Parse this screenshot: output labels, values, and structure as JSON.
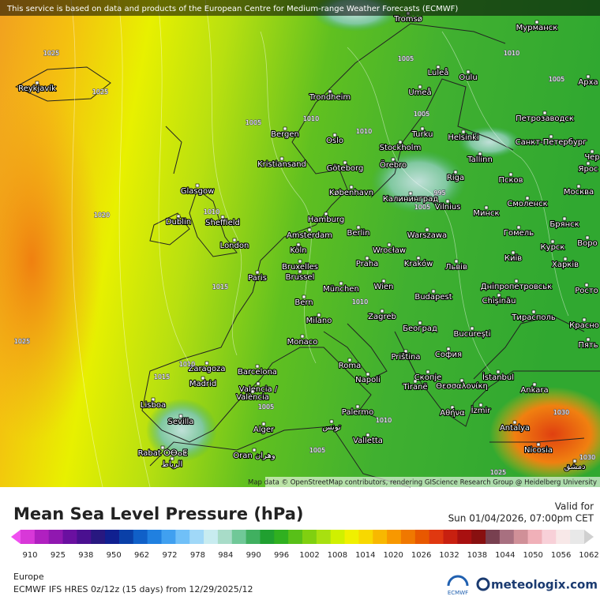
{
  "header": {
    "notice": "This service is based on data and products of the European Centre for Medium-range Weather Forecasts (ECMWF)"
  },
  "map": {
    "cities": [
      "Reykjavík",
      "Tromsø",
      "Мурманск",
      "Luleå",
      "Oulu",
      "Арха",
      "Trondheim",
      "Umeå",
      "Петрозаводск",
      "Bergen",
      "Turku",
      "Helsinki",
      "Санкт-Петербург",
      "Oslo",
      "Stockholm",
      "Tallinn",
      "Kristiansand",
      "Göteborg",
      "Örebro",
      "Чер",
      "Ярос",
      "Glasgow",
      "Riga",
      "Псков",
      "København",
      "Москва",
      "Калининград",
      "Vilnius",
      "Смоленск",
      "Dublin",
      "Sheffield",
      "Hamburg",
      "Минск",
      "Брянск",
      "Amsterdam",
      "Berlin",
      "Warszawa",
      "Гомель",
      "Воро",
      "London",
      "Köln",
      "Wrocław",
      "Київ",
      "Курск",
      "Bruxelles",
      "Brussel",
      "Praha",
      "Kraków",
      "Львів",
      "Харків",
      "Paris",
      "München",
      "Wien",
      "Дніпропетровськ",
      "Росто",
      "Chișinău",
      "Bern",
      "Budapest",
      "Milano",
      "Zagreb",
      "Тирасполь",
      "Красно",
      "Београд",
      "București",
      "Monaco",
      "Пять",
      "Priština",
      "София",
      "Zaragoza",
      "Barcelona",
      "Roma",
      "Скопje",
      "İstanbul",
      "Madrid",
      "Valencia /",
      "València",
      "Napoli",
      "Tiranë",
      "Θεσσαλονίκη",
      "Ankara",
      "Lisboa",
      "Palermo",
      "Αθήνα",
      "İzmir",
      "Sevilla",
      "تونس",
      "Alger",
      "Antalya",
      "Valletta",
      "Rabat ⵔⴱⴰⵟ",
      "الرباط",
      "Oran وهران",
      "Nicosia",
      "دمشق"
    ],
    "isobar_labels": [
      1025,
      1025,
      1005,
      1010,
      1005,
      1005,
      1010,
      1010,
      1005,
      1020,
      1010,
      1015,
      1025,
      1010,
      1015,
      1005,
      1010,
      1005,
      1025,
      1030,
      1030,
      995,
      1005,
      1010
    ],
    "attribution": "Map data © OpenStreetMap contributors, rendering GIScience Research Group @ Heidelberg University"
  },
  "legend": {
    "title": "Mean Sea Level Pressure (hPa)",
    "valid_label": "Valid for",
    "valid_time": "Sun 01/04/2026, 07:00pm CET",
    "ticks": [
      910,
      925,
      938,
      950,
      962,
      972,
      978,
      984,
      990,
      996,
      1002,
      1008,
      1014,
      1020,
      1026,
      1032,
      1038,
      1044,
      1050,
      1056,
      1062
    ],
    "colors": [
      "#f050f0",
      "#d838d8",
      "#b020c0",
      "#9018b0",
      "#6a10a0",
      "#4a1090",
      "#281880",
      "#102090",
      "#0a40a8",
      "#1060c8",
      "#2080e0",
      "#40a0f0",
      "#70c0f8",
      "#a0d8f8",
      "#c8ecf0",
      "#a8dcc8",
      "#70c898",
      "#40b060",
      "#20a030",
      "#30b020",
      "#58c018",
      "#80d010",
      "#a8e010",
      "#d0f000",
      "#f0f000",
      "#f8d800",
      "#f8b800",
      "#f89800",
      "#f07800",
      "#e85800",
      "#e03810",
      "#c82010",
      "#a81010",
      "#881010",
      "#784050",
      "#a87080",
      "#d09098",
      "#f0b0b8",
      "#f8d0d8",
      "#f8e8e8",
      "#e8e8e8",
      "#d0d0d0"
    ],
    "region": "Europe",
    "model": "ECMWF IFS HRES 0z/12z (15 days) from 12/29/2025/12",
    "ecmwf_logo": "ECMWF",
    "site": "meteologix.com"
  }
}
